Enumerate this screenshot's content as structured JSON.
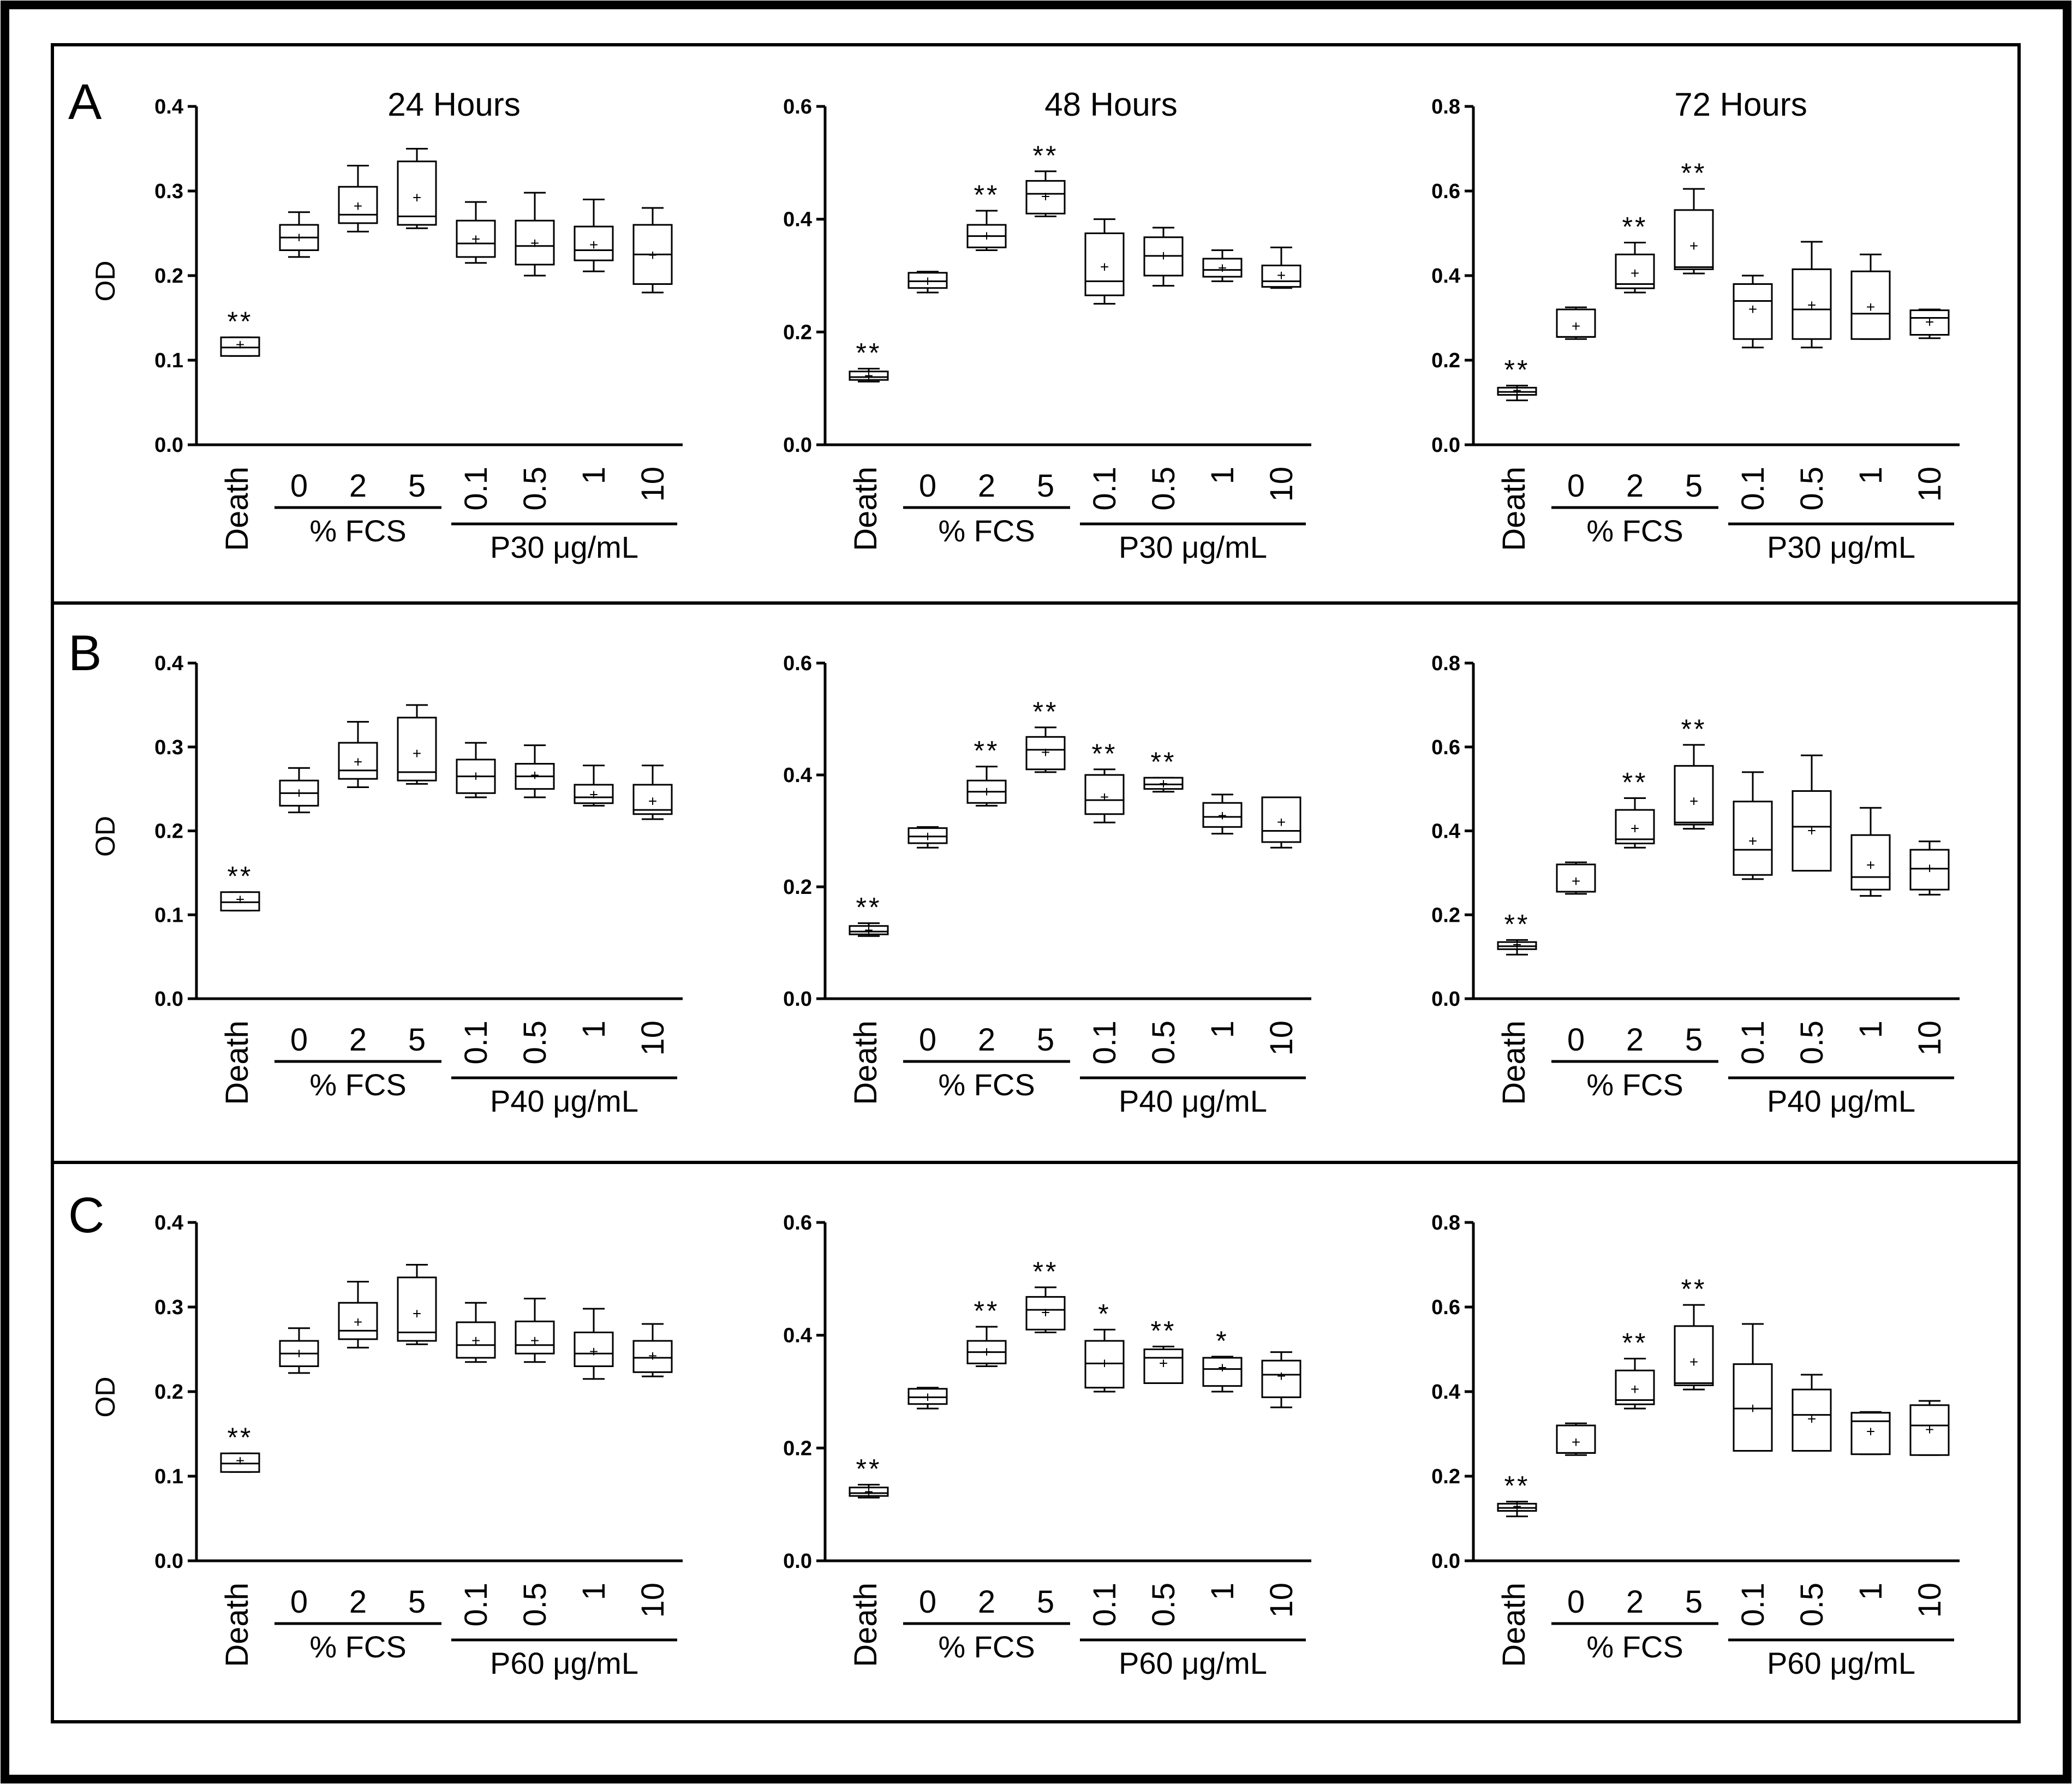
{
  "panel_letters": [
    "A",
    "B",
    "C"
  ],
  "column_titles": [
    "24 Hours",
    "48 Hours",
    "72 Hours"
  ],
  "y_axis_label": "OD",
  "group_labels": {
    "fcs": "% FCS",
    "peptide": [
      "P30 μg/mL",
      "P40 μg/mL",
      "P60 μg/mL"
    ]
  },
  "category_labels": [
    "Death",
    "0",
    "2",
    "5",
    "0.1",
    "0.5",
    "1",
    "10"
  ],
  "y_ticks": {
    "24h": [
      "0.0",
      "0.1",
      "0.2",
      "0.3",
      "0.4"
    ],
    "48h": [
      "0.0",
      "0.2",
      "0.4",
      "0.6"
    ],
    "72h": [
      "0.0",
      "0.2",
      "0.4",
      "0.6",
      "0.8"
    ]
  },
  "chart_data": [
    {
      "type": "box",
      "panel": "A",
      "title": "24 Hours",
      "ylabel": "OD",
      "ylim": [
        0,
        0.4
      ],
      "categories": [
        "Death",
        "0",
        "2",
        "5",
        "0.1",
        "0.5",
        "1",
        "10"
      ],
      "boxes": [
        [
          0.105,
          0.105,
          0.115,
          0.127,
          0.127,
          0.118
        ],
        [
          0.222,
          0.23,
          0.245,
          0.26,
          0.275,
          0.245
        ],
        [
          0.252,
          0.262,
          0.272,
          0.305,
          0.33,
          0.282
        ],
        [
          0.256,
          0.26,
          0.27,
          0.335,
          0.35,
          0.292
        ],
        [
          0.215,
          0.222,
          0.238,
          0.265,
          0.287,
          0.243
        ],
        [
          0.2,
          0.213,
          0.235,
          0.265,
          0.298,
          0.238
        ],
        [
          0.205,
          0.218,
          0.23,
          0.258,
          0.29,
          0.236
        ],
        [
          0.18,
          0.19,
          0.225,
          0.26,
          0.28,
          0.224
        ]
      ],
      "significance": [
        "**",
        "",
        "",
        "",
        "",
        "",
        "",
        ""
      ]
    },
    {
      "type": "box",
      "panel": "A",
      "title": "48 Hours",
      "ylabel": "",
      "ylim": [
        0,
        0.6
      ],
      "categories": [
        "Death",
        "0",
        "2",
        "5",
        "0.1",
        "0.5",
        "1",
        "10"
      ],
      "boxes": [
        [
          0.112,
          0.115,
          0.12,
          0.13,
          0.135,
          0.122
        ],
        [
          0.27,
          0.278,
          0.29,
          0.305,
          0.307,
          0.29
        ],
        [
          0.345,
          0.35,
          0.37,
          0.39,
          0.415,
          0.37
        ],
        [
          0.405,
          0.41,
          0.445,
          0.468,
          0.485,
          0.44
        ],
        [
          0.25,
          0.265,
          0.29,
          0.375,
          0.4,
          0.315
        ],
        [
          0.282,
          0.3,
          0.335,
          0.368,
          0.385,
          0.335
        ],
        [
          0.29,
          0.298,
          0.31,
          0.33,
          0.345,
          0.313
        ],
        [
          0.278,
          0.28,
          0.29,
          0.318,
          0.35,
          0.3
        ]
      ],
      "significance": [
        "**",
        "",
        "**",
        "**",
        "",
        "",
        "",
        ""
      ]
    },
    {
      "type": "box",
      "panel": "A",
      "title": "72 Hours",
      "ylabel": "",
      "ylim": [
        0,
        0.8
      ],
      "categories": [
        "Death",
        "0",
        "2",
        "5",
        "0.1",
        "0.5",
        "1",
        "10"
      ],
      "boxes": [
        [
          0.105,
          0.118,
          0.125,
          0.135,
          0.14,
          0.128
        ],
        [
          0.25,
          0.255,
          0.255,
          0.32,
          0.325,
          0.28
        ],
        [
          0.36,
          0.37,
          0.38,
          0.45,
          0.478,
          0.405
        ],
        [
          0.405,
          0.415,
          0.42,
          0.555,
          0.605,
          0.47
        ],
        [
          0.23,
          0.25,
          0.34,
          0.38,
          0.4,
          0.32
        ],
        [
          0.23,
          0.25,
          0.32,
          0.415,
          0.48,
          0.33
        ],
        [
          0.25,
          0.25,
          0.31,
          0.41,
          0.45,
          0.325
        ],
        [
          0.252,
          0.26,
          0.3,
          0.318,
          0.32,
          0.29
        ]
      ],
      "significance": [
        "**",
        "",
        "**",
        "**",
        "",
        "",
        "",
        ""
      ]
    },
    {
      "type": "box",
      "panel": "B",
      "title": "",
      "ylabel": "OD",
      "ylim": [
        0,
        0.4
      ],
      "categories": [
        "Death",
        "0",
        "2",
        "5",
        "0.1",
        "0.5",
        "1",
        "10"
      ],
      "boxes": [
        [
          0.105,
          0.105,
          0.115,
          0.127,
          0.127,
          0.118
        ],
        [
          0.222,
          0.23,
          0.245,
          0.26,
          0.275,
          0.245
        ],
        [
          0.252,
          0.262,
          0.272,
          0.305,
          0.33,
          0.282
        ],
        [
          0.256,
          0.26,
          0.27,
          0.335,
          0.35,
          0.292
        ],
        [
          0.24,
          0.245,
          0.265,
          0.285,
          0.305,
          0.265
        ],
        [
          0.24,
          0.25,
          0.265,
          0.28,
          0.302,
          0.266
        ],
        [
          0.23,
          0.233,
          0.24,
          0.255,
          0.278,
          0.243
        ],
        [
          0.214,
          0.22,
          0.225,
          0.255,
          0.278,
          0.235
        ]
      ],
      "significance": [
        "**",
        "",
        "",
        "",
        "",
        "",
        "",
        ""
      ]
    },
    {
      "type": "box",
      "panel": "B",
      "title": "",
      "ylabel": "",
      "ylim": [
        0,
        0.6
      ],
      "categories": [
        "Death",
        "0",
        "2",
        "5",
        "0.1",
        "0.5",
        "1",
        "10"
      ],
      "boxes": [
        [
          0.112,
          0.115,
          0.12,
          0.13,
          0.135,
          0.122
        ],
        [
          0.27,
          0.278,
          0.29,
          0.305,
          0.307,
          0.29
        ],
        [
          0.345,
          0.35,
          0.37,
          0.39,
          0.415,
          0.37
        ],
        [
          0.405,
          0.41,
          0.445,
          0.468,
          0.485,
          0.44
        ],
        [
          0.315,
          0.33,
          0.355,
          0.4,
          0.41,
          0.36
        ],
        [
          0.37,
          0.375,
          0.383,
          0.395,
          0.395,
          0.384
        ],
        [
          0.295,
          0.307,
          0.325,
          0.35,
          0.365,
          0.327
        ],
        [
          0.27,
          0.28,
          0.3,
          0.36,
          0.36,
          0.315
        ]
      ],
      "significance": [
        "**",
        "",
        "**",
        "**",
        "**",
        "**",
        "",
        ""
      ]
    },
    {
      "type": "box",
      "panel": "B",
      "title": "",
      "ylabel": "",
      "ylim": [
        0,
        0.8
      ],
      "categories": [
        "Death",
        "0",
        "2",
        "5",
        "0.1",
        "0.5",
        "1",
        "10"
      ],
      "boxes": [
        [
          0.105,
          0.118,
          0.125,
          0.135,
          0.14,
          0.128
        ],
        [
          0.25,
          0.255,
          0.255,
          0.32,
          0.325,
          0.28
        ],
        [
          0.36,
          0.37,
          0.38,
          0.45,
          0.478,
          0.405
        ],
        [
          0.405,
          0.415,
          0.42,
          0.555,
          0.605,
          0.47
        ],
        [
          0.285,
          0.295,
          0.355,
          0.47,
          0.54,
          0.375
        ],
        [
          0.305,
          0.305,
          0.41,
          0.495,
          0.58,
          0.4
        ],
        [
          0.245,
          0.26,
          0.29,
          0.39,
          0.455,
          0.318
        ],
        [
          0.248,
          0.26,
          0.31,
          0.355,
          0.375,
          0.31
        ]
      ],
      "significance": [
        "**",
        "",
        "**",
        "**",
        "",
        "",
        "",
        ""
      ]
    },
    {
      "type": "box",
      "panel": "C",
      "title": "",
      "ylabel": "OD",
      "ylim": [
        0,
        0.4
      ],
      "categories": [
        "Death",
        "0",
        "2",
        "5",
        "0.1",
        "0.5",
        "1",
        "10"
      ],
      "boxes": [
        [
          0.105,
          0.105,
          0.115,
          0.127,
          0.127,
          0.118
        ],
        [
          0.222,
          0.23,
          0.245,
          0.26,
          0.275,
          0.245
        ],
        [
          0.252,
          0.262,
          0.272,
          0.305,
          0.33,
          0.282
        ],
        [
          0.256,
          0.26,
          0.27,
          0.335,
          0.35,
          0.292
        ],
        [
          0.235,
          0.24,
          0.255,
          0.282,
          0.305,
          0.26
        ],
        [
          0.235,
          0.245,
          0.255,
          0.283,
          0.31,
          0.26
        ],
        [
          0.215,
          0.23,
          0.245,
          0.27,
          0.298,
          0.247
        ],
        [
          0.218,
          0.223,
          0.24,
          0.26,
          0.28,
          0.242
        ]
      ],
      "significance": [
        "**",
        "",
        "",
        "",
        "",
        "",
        "",
        ""
      ]
    },
    {
      "type": "box",
      "panel": "C",
      "title": "",
      "ylabel": "",
      "ylim": [
        0,
        0.6
      ],
      "categories": [
        "Death",
        "0",
        "2",
        "5",
        "0.1",
        "0.5",
        "1",
        "10"
      ],
      "boxes": [
        [
          0.112,
          0.115,
          0.12,
          0.13,
          0.135,
          0.122
        ],
        [
          0.27,
          0.278,
          0.29,
          0.305,
          0.307,
          0.29
        ],
        [
          0.345,
          0.35,
          0.37,
          0.39,
          0.415,
          0.37
        ],
        [
          0.405,
          0.41,
          0.445,
          0.468,
          0.485,
          0.44
        ],
        [
          0.3,
          0.307,
          0.35,
          0.39,
          0.41,
          0.35
        ],
        [
          0.315,
          0.315,
          0.36,
          0.375,
          0.38,
          0.35
        ],
        [
          0.3,
          0.31,
          0.34,
          0.36,
          0.362,
          0.342
        ],
        [
          0.272,
          0.29,
          0.33,
          0.355,
          0.37,
          0.327
        ]
      ],
      "significance": [
        "**",
        "",
        "**",
        "**",
        "*",
        "**",
        "*",
        ""
      ]
    },
    {
      "type": "box",
      "panel": "C",
      "title": "",
      "ylabel": "",
      "ylim": [
        0,
        0.8
      ],
      "categories": [
        "Death",
        "0",
        "2",
        "5",
        "0.1",
        "0.5",
        "1",
        "10"
      ],
      "boxes": [
        [
          0.105,
          0.118,
          0.125,
          0.135,
          0.14,
          0.128
        ],
        [
          0.25,
          0.255,
          0.255,
          0.32,
          0.325,
          0.28
        ],
        [
          0.36,
          0.37,
          0.38,
          0.45,
          0.478,
          0.405
        ],
        [
          0.405,
          0.415,
          0.42,
          0.555,
          0.605,
          0.47
        ],
        [
          0.26,
          0.26,
          0.36,
          0.465,
          0.56,
          0.36
        ],
        [
          0.26,
          0.26,
          0.345,
          0.405,
          0.44,
          0.335
        ],
        [
          0.252,
          0.252,
          0.33,
          0.35,
          0.352,
          0.305
        ],
        [
          0.25,
          0.25,
          0.32,
          0.368,
          0.378,
          0.31
        ]
      ],
      "significance": [
        "**",
        "",
        "**",
        "**",
        "",
        "",
        "",
        ""
      ]
    }
  ]
}
